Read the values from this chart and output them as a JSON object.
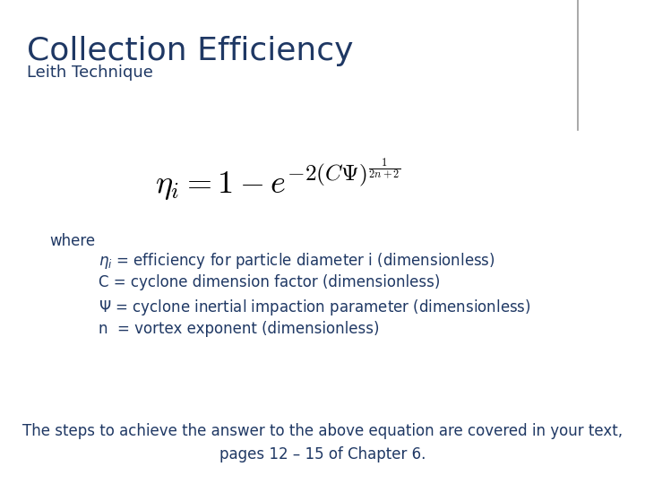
{
  "title": "Collection Efficiency",
  "subtitle": "Leith Technique",
  "title_color": "#1F3864",
  "title_fontsize": 26,
  "subtitle_fontsize": 13,
  "equation_fontsize": 26,
  "where_text": "where",
  "bullet1": "$\\eta_i$ = efficiency for particle diameter i (dimensionless)",
  "bullet2": "C = cyclone dimension factor (dimensionless)",
  "bullet3": "$\\Psi$ = cyclone inertial impaction parameter (dimensionless)",
  "bullet4": "n  = vortex exponent (dimensionless)",
  "footer": "The steps to achieve the answer to the above equation are covered in your text,\npages 12 – 15 of Chapter 6.",
  "text_color": "#1F3864",
  "bg_color": "#FFFFFF",
  "body_fontsize": 12,
  "where_fontsize": 12,
  "footer_fontsize": 12
}
